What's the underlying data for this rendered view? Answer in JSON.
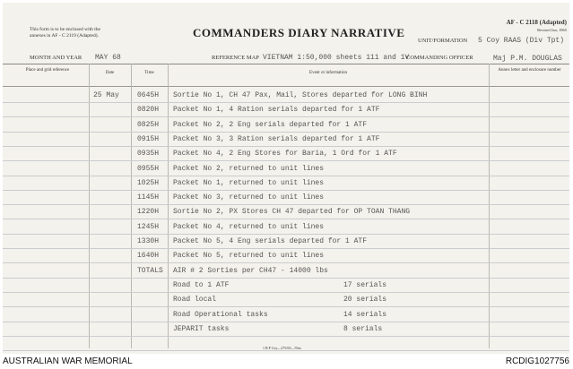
{
  "form_note": "This form is to be enclosed with the annexes in AF - C 2119 (Adapted).",
  "title": "COMMANDERS DIARY NARRATIVE",
  "form_code": "AF - C 2118 (Adapted)",
  "revised": "Revised Jan, 1965",
  "unit_label": "UNIT/FORMATION",
  "unit_value": "5 Coy RAAS (Div Tpt)",
  "month_label": "MONTH AND YEAR",
  "month_value": "MAY 68",
  "map_label": "REFERENCE MAP",
  "map_value": "VIETNAM 1:50,000 sheets 111 and 1V",
  "co_label": "COMMANDING OFFICER",
  "co_value": "Maj P.M. DOUGLAS",
  "columns": [
    "Place and grid reference",
    "Date",
    "Time",
    "Event or information",
    "Annex letter and enclosure number"
  ],
  "rows": [
    {
      "date": "25 May",
      "time": "0645H",
      "event": "Sortie No 1, CH 47 Pax, Mail, Stores departed for LONG BINH"
    },
    {
      "date": "",
      "time": "0820H",
      "event": "Packet No 1, 4 Ration serials departed for 1 ATF"
    },
    {
      "date": "",
      "time": "0825H",
      "event": "Packet No 2, 2 Eng serials departed for 1 ATF"
    },
    {
      "date": "",
      "time": "0915H",
      "event": "Packet No 3, 3 Ration serials departed for 1 ATF"
    },
    {
      "date": "",
      "time": "0935H",
      "event": "Packet No 4, 2 Eng Stores for Baria, 1 Ord for 1 ATF"
    },
    {
      "date": "",
      "time": "0955H",
      "event": "Packet No 2, returned to unit lines"
    },
    {
      "date": "",
      "time": "1025H",
      "event": "Packet No 1, returned to unit lines"
    },
    {
      "date": "",
      "time": "1145H",
      "event": "Packet No 3, returned to unit lines"
    },
    {
      "date": "",
      "time": "1220H",
      "event": "Sortie No 2, PX Stores CH 47 departed for OP TOAN THANG"
    },
    {
      "date": "",
      "time": "1245H",
      "event": "Packet No 4, returned to unit lines"
    },
    {
      "date": "",
      "time": "1330H",
      "event": "Packet No 5, 4 Eng serials departed for 1 ATF"
    },
    {
      "date": "",
      "time": "1640H",
      "event": "Packet No 5, returned to unit lines"
    },
    {
      "date": "",
      "time": "TOTALS",
      "event": "AIR # 2 Sorties per CH47 - 14000 lbs"
    },
    {
      "date": "",
      "time": "",
      "event": "Road to 1 ATF",
      "count": "17 serials"
    },
    {
      "date": "",
      "time": "",
      "event": "Road local",
      "count": "20 serials"
    },
    {
      "date": "",
      "time": "",
      "event": "Road Operational tasks",
      "count": "14 serials"
    },
    {
      "date": "",
      "time": "",
      "event": "JEPARIT tasks",
      "count": "8 serials"
    }
  ],
  "printer": "1 B P Coy—275/65—55m",
  "footer_left": "AUSTRALIAN WAR MEMORIAL",
  "footer_right": "RCDIG1027756"
}
